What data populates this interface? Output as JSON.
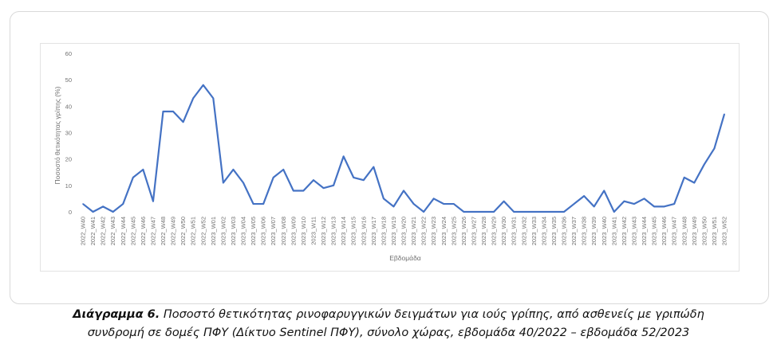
{
  "chart_data": {
    "type": "line",
    "xlabel": "Εβδομάδα",
    "ylabel": "Ποσοστό θετικότητας γρίπης (%)",
    "ylim": [
      0,
      60
    ],
    "yticks": [
      0,
      10,
      20,
      30,
      40,
      50,
      60
    ],
    "grid": false,
    "line_color": "#4472c4",
    "categories": [
      "2022_W40",
      "2022_W41",
      "2022_W42",
      "2022_W43",
      "2022_W44",
      "2022_W45",
      "2022_W46",
      "2022_W47",
      "2022_W48",
      "2022_W49",
      "2022_W50",
      "2022_W51",
      "2022_W52",
      "2023_W01",
      "2023_W02",
      "2023_W03",
      "2023_W04",
      "2023_W05",
      "2023_W06",
      "2023_W07",
      "2023_W08",
      "2023_W09",
      "2023_W10",
      "2023_W11",
      "2023_W12",
      "2023_W13",
      "2023_W14",
      "2023_W15",
      "2023_W16",
      "2023_W17",
      "2023_W18",
      "2023_W19",
      "2023_W20",
      "2023_W21",
      "2023_W22",
      "2023_W23",
      "2023_W24",
      "2023_W25",
      "2023_W26",
      "2023_W27",
      "2023_W28",
      "2023_W29",
      "2023_W30",
      "2023_W31",
      "2023_W32",
      "2023_W33",
      "2023_W34",
      "2023_W35",
      "2023_W36",
      "2023_W37",
      "2023_W38",
      "2023_W39",
      "2023_W40",
      "2023_W41",
      "2023_W42",
      "2023_W43",
      "2023_W44",
      "2023_W45",
      "2023_W46",
      "2023_W47",
      "2023_W48",
      "2023_W49",
      "2023_W50",
      "2023_W51",
      "2023_W52"
    ],
    "values": [
      3,
      0,
      2,
      0,
      3,
      13,
      16,
      4,
      38,
      38,
      34,
      43,
      48,
      43,
      11,
      16,
      11,
      3,
      3,
      13,
      16,
      8,
      8,
      12,
      9,
      10,
      21,
      13,
      12,
      17,
      5,
      2,
      8,
      3,
      0,
      5,
      3,
      3,
      0,
      0,
      0,
      0,
      4,
      0,
      0,
      0,
      0,
      0,
      0,
      3,
      6,
      2,
      8,
      0,
      4,
      3,
      5,
      2,
      2,
      3,
      13,
      11,
      18,
      24,
      37
    ]
  },
  "caption": {
    "label": "Διάγραμμα 6.",
    "line1_rest": " Ποσοστό θετικότητας ρινοφαρυγγικών δειγμάτων για ιούς γρίπης, από ασθενείς με γριπώδη",
    "line2": "συνδρομή σε δομές ΠΦΥ (Δίκτυο Sentinel ΠΦΥ), σύνολο χώρας, εβδομάδα 40/2022 – εβδομάδα 52/2023"
  }
}
